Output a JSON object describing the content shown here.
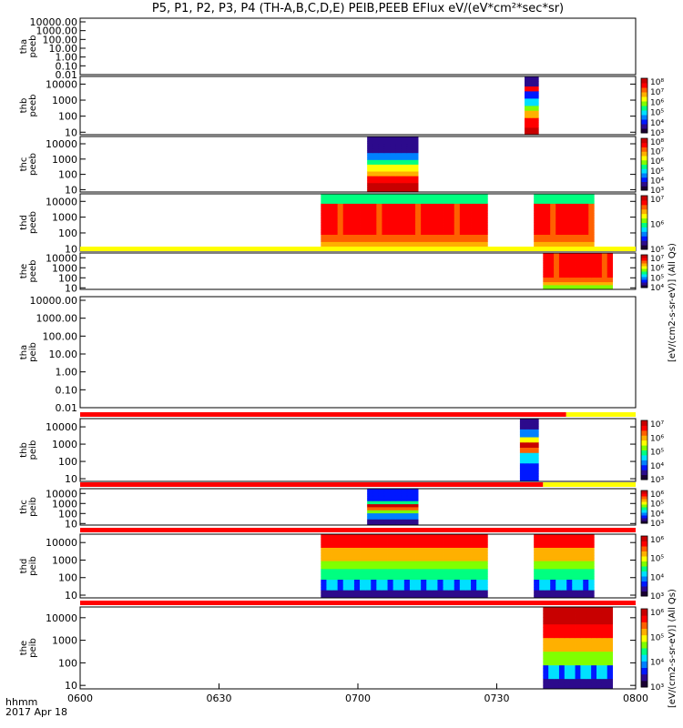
{
  "title": "P5, P1, P2, P3, P4 (TH-A,B,C,D,E) PEIB,PEEB EFlux eV/(eV*cm²*sec*sr)",
  "time_axis": {
    "label": "hhmm",
    "date": "2017 Apr 18",
    "ticks": [
      "0600",
      "0630",
      "0700",
      "0730",
      "0800"
    ]
  },
  "colorbar_titles": {
    "electrons": "[eV/(cm2-s-sr-eV)] (All Qs)",
    "ions": "[eV/(cm2-s-sr-eV)] (All Qs)"
  },
  "colors": {
    "spectrogram_scale": [
      "#1a0033",
      "#2c0a8c",
      "#0018ff",
      "#0080ff",
      "#00e0ff",
      "#00ff80",
      "#80ff00",
      "#ffff00",
      "#ffb000",
      "#ff6000",
      "#ff0000",
      "#c80000"
    ],
    "flag_red": "#ff0000",
    "flag_yellow": "#ffff00"
  },
  "chart_data": [
    {
      "type": "heatmap",
      "panel": "tha peeb",
      "ylabel": [
        "tha",
        "peeb"
      ],
      "yscale": "log",
      "ytick_labels": [
        "10000.00",
        "1000.00",
        "100.00",
        "10.00",
        "1.00",
        "0.10",
        "0.01"
      ],
      "colorbar": false,
      "segments": []
    },
    {
      "type": "heatmap",
      "panel": "thb peeb",
      "ylabel": [
        "thb",
        "peeb"
      ],
      "yscale": "log",
      "ylim": [
        7,
        30000
      ],
      "ytick_labels": [
        "10000",
        "1000",
        "100",
        "10"
      ],
      "colorbar": {
        "labels": [
          "10⁸",
          "10⁷",
          "10⁶",
          "10⁵",
          "10⁴",
          "10³"
        ]
      },
      "segments": [
        {
          "start": "0736",
          "end": "0739",
          "pattern": "thb_e"
        }
      ]
    },
    {
      "type": "heatmap",
      "panel": "thc peeb",
      "ylabel": [
        "thc",
        "peeb"
      ],
      "yscale": "log",
      "ylim": [
        7,
        30000
      ],
      "ytick_labels": [
        "10000",
        "1000",
        "100",
        "10"
      ],
      "colorbar": {
        "labels": [
          "10⁸",
          "10⁷",
          "10⁶",
          "10⁵",
          "10⁴",
          "10³"
        ]
      },
      "segments": [
        {
          "start": "0702",
          "end": "0713",
          "pattern": "thc_e"
        }
      ]
    },
    {
      "type": "heatmap",
      "panel": "thd peeb",
      "ylabel": [
        "thd",
        "peeb"
      ],
      "yscale": "log",
      "ylim": [
        7,
        30000
      ],
      "ytick_labels": [
        "10000",
        "1000",
        "100",
        "10"
      ],
      "colorbar": {
        "labels": [
          "10⁷",
          "10⁶",
          "10⁵"
        ]
      },
      "segments": [
        {
          "start": "0652",
          "end": "0728",
          "pattern": "wide_e"
        },
        {
          "start": "0738",
          "end": "0751",
          "pattern": "wide_e"
        }
      ]
    },
    {
      "type": "heatmap",
      "panel": "the peeb",
      "ylabel": [
        "the",
        "peeb"
      ],
      "yscale": "log",
      "ylim": [
        7,
        30000
      ],
      "ytick_labels": [
        "10000",
        "1000",
        "100",
        "10"
      ],
      "colorbar": {
        "labels": [
          "10⁷",
          "10⁶",
          "10⁵",
          "10⁴"
        ]
      },
      "flag_bar": [
        {
          "start": "0600",
          "end": "0800",
          "color": "#ffff00"
        }
      ],
      "segments": [
        {
          "start": "0740",
          "end": "0755",
          "pattern": "the_e"
        }
      ]
    },
    {
      "type": "heatmap",
      "panel": "tha peib",
      "ylabel": [
        "tha",
        "peib"
      ],
      "yscale": "log",
      "ytick_labels": [
        "10000.00",
        "1000.00",
        "100.00",
        "10.00",
        "1.00",
        "0.10",
        "0.01"
      ],
      "colorbar": false,
      "segments": []
    },
    {
      "type": "heatmap",
      "panel": "thb peib",
      "ylabel": [
        "thb",
        "peib"
      ],
      "yscale": "log",
      "ylim": [
        7,
        30000
      ],
      "ytick_labels": [
        "10000",
        "1000",
        "100",
        "10"
      ],
      "colorbar": {
        "labels": [
          "10⁷",
          "10⁶",
          "10⁵",
          "10⁴",
          "10³"
        ]
      },
      "flag_bar": [
        {
          "start": "0600",
          "end": "0745",
          "color": "#ff0000"
        },
        {
          "start": "0745",
          "end": "0800",
          "color": "#ffff00"
        }
      ],
      "segments": [
        {
          "start": "0735",
          "end": "0739",
          "pattern": "thb_i"
        }
      ]
    },
    {
      "type": "heatmap",
      "panel": "thc peib",
      "ylabel": [
        "thc",
        "peib"
      ],
      "yscale": "log",
      "ylim": [
        7,
        30000
      ],
      "ytick_labels": [
        "10000",
        "1000",
        "100",
        "10"
      ],
      "colorbar": {
        "labels": [
          "10⁶",
          "10⁵",
          "10⁴",
          "10³"
        ]
      },
      "flag_bar": [
        {
          "start": "0600",
          "end": "0740",
          "color": "#ff0000"
        },
        {
          "start": "0740",
          "end": "0800",
          "color": "#ffff00"
        }
      ],
      "segments": [
        {
          "start": "0702",
          "end": "0713",
          "pattern": "thc_i"
        }
      ]
    },
    {
      "type": "heatmap",
      "panel": "thd peib",
      "ylabel": [
        "thd",
        "peib"
      ],
      "yscale": "log",
      "ylim": [
        7,
        30000
      ],
      "ytick_labels": [
        "10000",
        "1000",
        "100",
        "10"
      ],
      "colorbar": {
        "labels": [
          "10⁶",
          "10⁵",
          "10⁴",
          "10³"
        ]
      },
      "flag_bar": [
        {
          "start": "0600",
          "end": "0800",
          "color": "#ff0000"
        }
      ],
      "segments": [
        {
          "start": "0652",
          "end": "0728",
          "pattern": "wide_i"
        },
        {
          "start": "0738",
          "end": "0751",
          "pattern": "wide_i"
        }
      ]
    },
    {
      "type": "heatmap",
      "panel": "the peib",
      "ylabel": [
        "the",
        "peib"
      ],
      "yscale": "log",
      "ylim": [
        7,
        30000
      ],
      "ytick_labels": [
        "10000",
        "1000",
        "100",
        "10"
      ],
      "colorbar": {
        "labels": [
          "10⁶",
          "10⁵",
          "10⁴",
          "10³"
        ]
      },
      "flag_bar": [
        {
          "start": "0600",
          "end": "0800",
          "color": "#ff0000"
        }
      ],
      "segments": [
        {
          "start": "0740",
          "end": "0755",
          "pattern": "the_i"
        }
      ]
    }
  ]
}
